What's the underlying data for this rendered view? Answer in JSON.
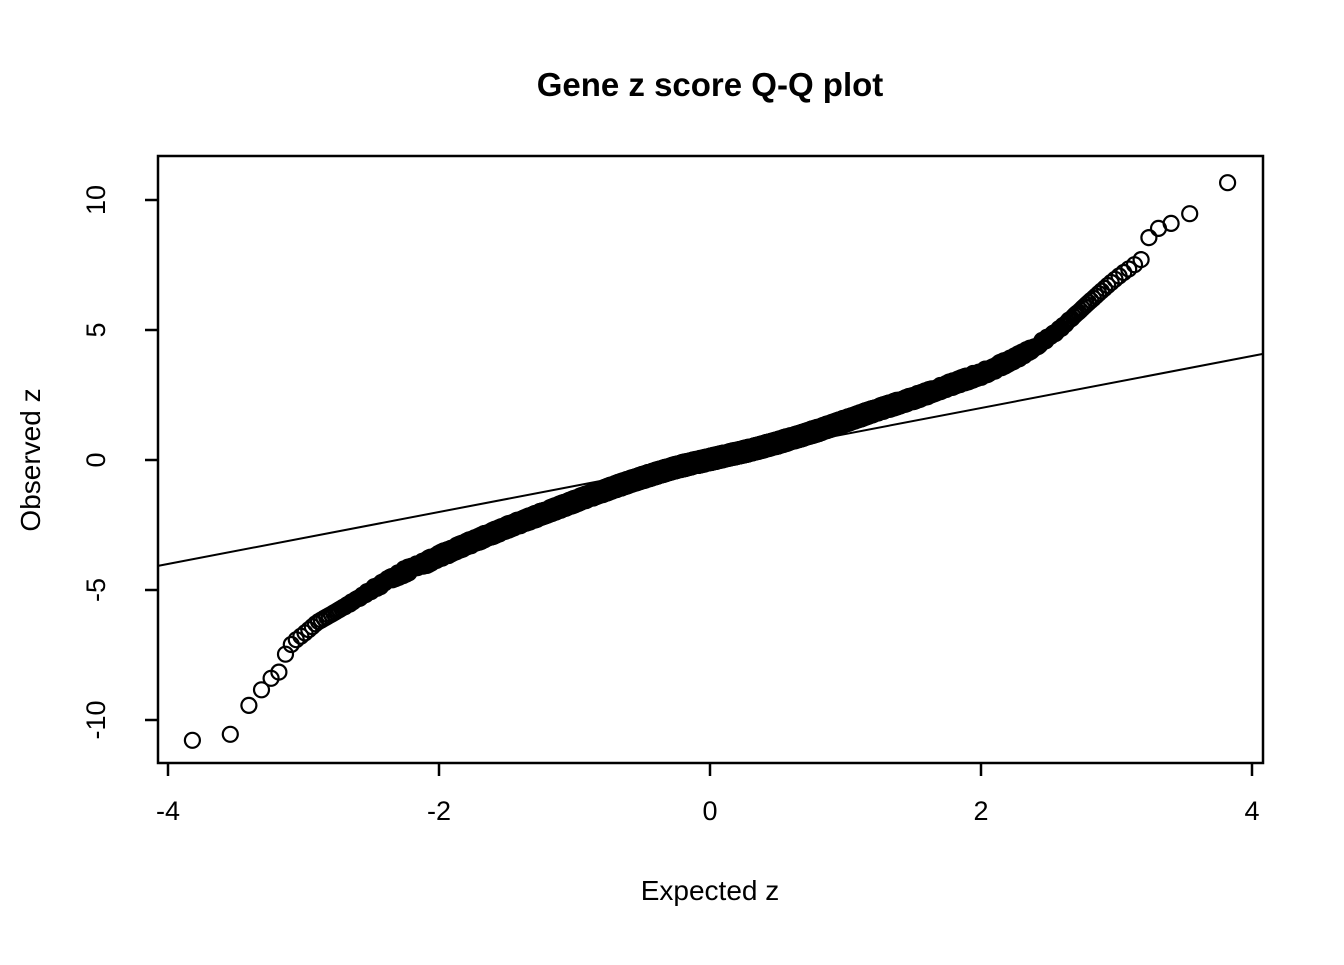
{
  "figure": {
    "background": "#ffffff",
    "foreground": "#000000"
  },
  "chart_data": {
    "type": "scatter",
    "title": "Gene z score Q-Q plot",
    "xlabel": "Expected z",
    "ylabel": "Observed z",
    "xlim": [
      -4.07,
      4.08
    ],
    "ylim": [
      -11.7,
      11.7
    ],
    "xticks": [
      -4,
      -2,
      0,
      2,
      4
    ],
    "yticks": [
      -10,
      -5,
      0,
      5,
      10
    ],
    "grid": false,
    "legend": "none",
    "marker": {
      "shape": "open-circle",
      "color": "#000000"
    },
    "n_points": 7500,
    "reference_line": {
      "slope": 1,
      "intercept": 0,
      "description": "y = x identity line"
    },
    "observed_range": [
      -10.78,
      10.65
    ],
    "curve_anchors": [
      [
        -3.82,
        -10.78
      ],
      [
        -3.72,
        -10.72
      ],
      [
        -3.6,
        -10.62
      ],
      [
        -3.54,
        -10.55
      ],
      [
        -3.5,
        -9.8
      ],
      [
        -3.46,
        -9.65
      ],
      [
        -3.42,
        -9.58
      ],
      [
        -3.38,
        -9.25
      ],
      [
        -3.34,
        -8.95
      ],
      [
        -3.3,
        -8.8
      ],
      [
        -3.27,
        -8.55
      ],
      [
        -3.23,
        -8.35
      ],
      [
        -3.2,
        -8.25
      ],
      [
        -3.18,
        -8.15
      ],
      [
        -3.16,
        -7.7
      ],
      [
        -3.13,
        -7.45
      ],
      [
        -3.1,
        -7.15
      ],
      [
        -3.07,
        -6.98
      ],
      [
        -3.03,
        -6.82
      ],
      [
        -3.0,
        -6.7
      ],
      [
        -2.95,
        -6.48
      ],
      [
        -2.9,
        -6.25
      ],
      [
        -2.8,
        -5.95
      ],
      [
        -2.7,
        -5.65
      ],
      [
        -2.6,
        -5.35
      ],
      [
        -2.5,
        -5.0
      ],
      [
        -2.4,
        -4.7
      ],
      [
        -2.3,
        -4.42
      ],
      [
        -2.2,
        -4.15
      ],
      [
        -2.1,
        -3.95
      ],
      [
        -2.0,
        -3.7
      ],
      [
        -1.9,
        -3.48
      ],
      [
        -1.8,
        -3.25
      ],
      [
        -1.7,
        -3.03
      ],
      [
        -1.6,
        -2.82
      ],
      [
        -1.5,
        -2.6
      ],
      [
        -1.4,
        -2.4
      ],
      [
        -1.3,
        -2.2
      ],
      [
        -1.2,
        -2.0
      ],
      [
        -1.1,
        -1.8
      ],
      [
        -1.0,
        -1.6
      ],
      [
        -0.9,
        -1.4
      ],
      [
        -0.8,
        -1.22
      ],
      [
        -0.7,
        -1.03
      ],
      [
        -0.6,
        -0.85
      ],
      [
        -0.5,
        -0.68
      ],
      [
        -0.4,
        -0.52
      ],
      [
        -0.3,
        -0.36
      ],
      [
        -0.2,
        -0.22
      ],
      [
        -0.1,
        -0.1
      ],
      [
        0.0,
        0.02
      ],
      [
        0.1,
        0.14
      ],
      [
        0.2,
        0.26
      ],
      [
        0.3,
        0.38
      ],
      [
        0.4,
        0.52
      ],
      [
        0.5,
        0.66
      ],
      [
        0.6,
        0.82
      ],
      [
        0.7,
        0.98
      ],
      [
        0.8,
        1.14
      ],
      [
        0.9,
        1.32
      ],
      [
        1.0,
        1.5
      ],
      [
        1.1,
        1.68
      ],
      [
        1.2,
        1.86
      ],
      [
        1.3,
        2.03
      ],
      [
        1.4,
        2.2
      ],
      [
        1.5,
        2.37
      ],
      [
        1.6,
        2.55
      ],
      [
        1.7,
        2.74
      ],
      [
        1.8,
        2.94
      ],
      [
        1.9,
        3.12
      ],
      [
        2.0,
        3.3
      ],
      [
        2.1,
        3.52
      ],
      [
        2.2,
        3.78
      ],
      [
        2.3,
        4.05
      ],
      [
        2.4,
        4.35
      ],
      [
        2.5,
        4.72
      ],
      [
        2.6,
        5.12
      ],
      [
        2.7,
        5.6
      ],
      [
        2.8,
        6.08
      ],
      [
        2.9,
        6.55
      ],
      [
        2.95,
        6.78
      ],
      [
        3.0,
        7.0
      ],
      [
        3.05,
        7.2
      ],
      [
        3.1,
        7.38
      ],
      [
        3.15,
        7.58
      ],
      [
        3.18,
        7.7
      ],
      [
        3.21,
        7.85
      ],
      [
        3.24,
        8.58
      ],
      [
        3.28,
        8.8
      ],
      [
        3.33,
        8.98
      ],
      [
        3.38,
        9.06
      ],
      [
        3.43,
        9.15
      ],
      [
        3.48,
        9.32
      ],
      [
        3.53,
        9.45
      ],
      [
        3.6,
        9.62
      ],
      [
        3.7,
        9.9
      ],
      [
        3.78,
        10.6
      ],
      [
        3.83,
        10.68
      ]
    ]
  }
}
